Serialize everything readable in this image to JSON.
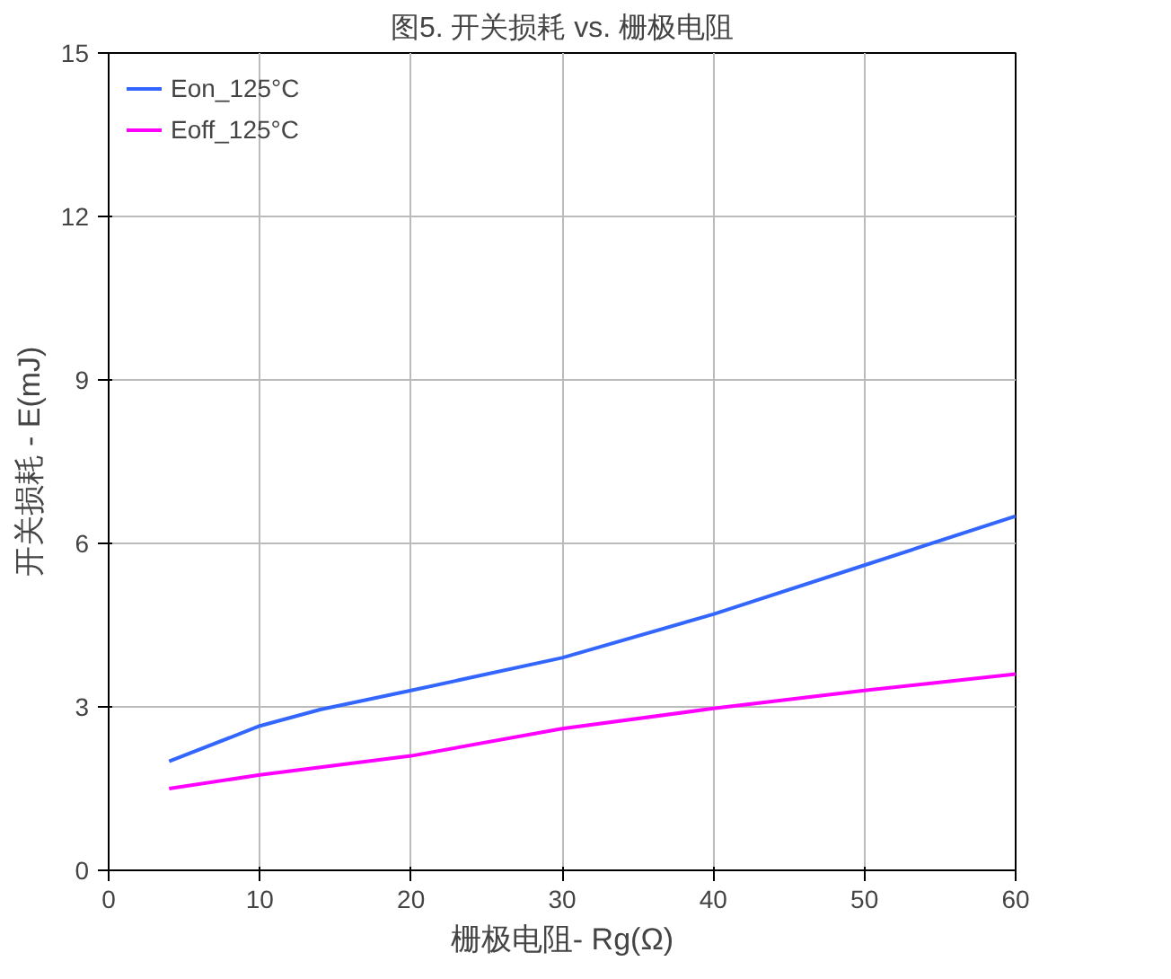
{
  "chart_data": {
    "type": "line",
    "title": "图5. 开关损耗 vs. 栅极电阻",
    "xlabel": "栅极电阻- Rg(Ω)",
    "ylabel": "开关损耗 - E(mJ)",
    "series": [
      {
        "name": "Eon_125°C",
        "color": "#3366ff",
        "x": [
          4,
          10,
          14,
          20,
          30,
          40,
          50,
          60
        ],
        "values": [
          2.0,
          2.65,
          2.95,
          3.3,
          3.9,
          4.7,
          5.6,
          6.5
        ]
      },
      {
        "name": "Eoff_125°C",
        "color": "#ff00ff",
        "x": [
          4,
          10,
          20,
          30,
          40,
          50,
          60
        ],
        "values": [
          1.5,
          1.75,
          2.1,
          2.6,
          2.97,
          3.3,
          3.6
        ]
      }
    ],
    "xlim": [
      0,
      60
    ],
    "xticks": [
      0,
      10,
      20,
      30,
      40,
      50,
      60
    ],
    "ylim": [
      0,
      15
    ],
    "yticks": [
      0,
      3,
      6,
      9,
      12,
      15
    ],
    "grid": true,
    "legend": "top left",
    "line_style": "solid",
    "marker": "none"
  }
}
